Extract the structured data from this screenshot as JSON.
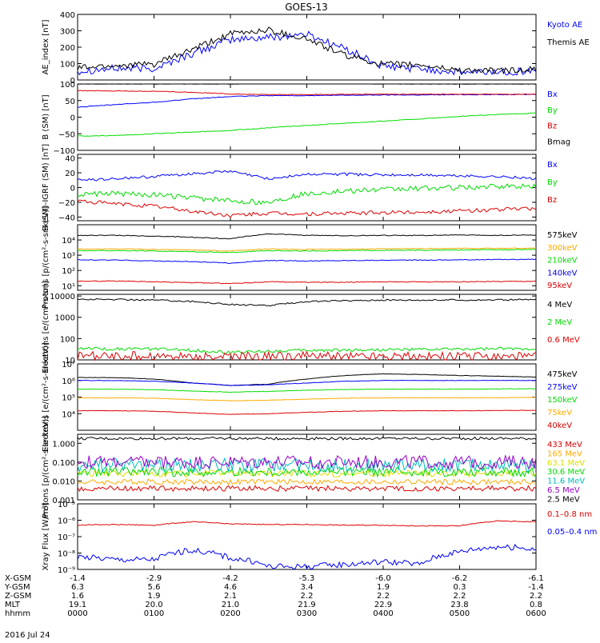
{
  "title": "GOES-13",
  "date_label": "2016 Jul 24",
  "ephemeris": {
    "rows": [
      {
        "label": "X-GSM",
        "values": [
          "-1.4",
          "-2.9",
          "-4.2",
          "-5.3",
          "-6.0",
          "-6.2",
          "-6.1"
        ]
      },
      {
        "label": "Y-GSM",
        "values": [
          "6.3",
          "5.6",
          "4.6",
          "3.4",
          "1.9",
          "0.3",
          "-1.4"
        ]
      },
      {
        "label": "Z-GSM",
        "values": [
          "1.6",
          "1.9",
          "2.1",
          "2.2",
          "2.2",
          "2.2",
          "2.2"
        ]
      },
      {
        "label": "MLT",
        "values": [
          "19.1",
          "20.0",
          "21.0",
          "21.9",
          "22.9",
          "23.8",
          "0.8"
        ]
      },
      {
        "label": "hhmm",
        "values": [
          "0000",
          "0100",
          "0200",
          "0300",
          "0400",
          "0500",
          "0600"
        ]
      }
    ]
  },
  "colors": {
    "black": "#000000",
    "blue": "#0000ff",
    "red": "#dd0000",
    "green": "#00dd00",
    "orange": "#ffaa00",
    "darkred": "#aa0000",
    "cyan": "#00aaff",
    "yellow": "#dddd00",
    "purple": "#9900cc",
    "teal": "#00bbbb"
  },
  "chart_data": [
    {
      "type": "line",
      "ylabel": "AE_index [nT]",
      "scale": "linear",
      "ylim": [
        0,
        400
      ],
      "yticks": [
        0,
        100,
        200,
        300,
        400
      ],
      "ytick_labels": [
        "0",
        "100",
        "200",
        "300",
        "400"
      ],
      "x": [
        0,
        0.5,
        1,
        1.5,
        2,
        2.5,
        3,
        3.5,
        4,
        4.5,
        5,
        5.5,
        6
      ],
      "series": [
        {
          "name": "Kyoto AE",
          "color": "#0000ff",
          "noise": 0.06,
          "values": [
            55,
            70,
            70,
            160,
            245,
            260,
            280,
            190,
            80,
            70,
            45,
            50,
            55
          ]
        },
        {
          "name": "Themis AE",
          "color": "#000000",
          "noise": 0.05,
          "values": [
            75,
            90,
            95,
            185,
            280,
            305,
            250,
            150,
            95,
            90,
            60,
            55,
            65
          ]
        }
      ]
    },
    {
      "type": "line",
      "ylabel": "B (SM) [nT]",
      "scale": "linear",
      "ylim": [
        -100,
        100
      ],
      "yticks": [
        -100,
        -50,
        0,
        50,
        100
      ],
      "ytick_labels": [
        "−100",
        "−50",
        "0",
        "50",
        "100"
      ],
      "x": [
        0,
        0.5,
        1,
        1.5,
        2,
        2.5,
        3,
        3.5,
        4,
        4.5,
        5,
        5.5,
        6
      ],
      "series": [
        {
          "name": "Bx",
          "color": "#0000ff",
          "noise": 0.005,
          "values": [
            30,
            38,
            45,
            55,
            62,
            65,
            65,
            66,
            67,
            67,
            68,
            68,
            69
          ]
        },
        {
          "name": "By",
          "color": "#00dd00",
          "noise": 0.005,
          "values": [
            -57,
            -55,
            -50,
            -45,
            -40,
            -32,
            -25,
            -18,
            -12,
            -5,
            2,
            8,
            12
          ]
        },
        {
          "name": "Bz",
          "color": "#dd0000",
          "noise": 0.005,
          "values": [
            80,
            79,
            78,
            75,
            70,
            68,
            68,
            69,
            69,
            69,
            69,
            69,
            69
          ]
        },
        {
          "name": "Bmag",
          "color": "#000000",
          "noise": 0.003,
          "values": [
            100,
            100,
            100,
            100,
            100,
            101,
            101,
            101,
            100,
            100,
            100,
            100,
            100
          ]
        }
      ]
    },
    {
      "type": "line",
      "ylabel": "B (SM)-IGRF (SM) [nT]",
      "scale": "linear",
      "ylim": [
        -45,
        45
      ],
      "yticks": [
        -40,
        -20,
        0,
        20,
        40
      ],
      "ytick_labels": [
        "−40",
        "−20",
        "0",
        "20",
        "40"
      ],
      "x": [
        0,
        0.5,
        1,
        1.5,
        2,
        2.5,
        3,
        3.5,
        4,
        4.5,
        5,
        5.5,
        6
      ],
      "series": [
        {
          "name": "Bx",
          "color": "#0000ff",
          "noise": 0.02,
          "values": [
            10,
            12,
            15,
            19,
            22,
            12,
            18,
            18,
            17,
            17,
            16,
            15,
            12
          ]
        },
        {
          "name": "By",
          "color": "#00dd00",
          "noise": 0.04,
          "values": [
            -10,
            -8,
            -10,
            -14,
            -18,
            -20,
            -8,
            -5,
            -3,
            -1,
            0,
            1,
            2
          ]
        },
        {
          "name": "Bz",
          "color": "#dd0000",
          "noise": 0.03,
          "values": [
            -18,
            -22,
            -25,
            -32,
            -38,
            -35,
            -36,
            -35,
            -34,
            -33,
            -32,
            -30,
            -28
          ]
        }
      ]
    },
    {
      "type": "line",
      "ylabel": "Protons [p/(cm²-s-sr-keV)]",
      "scale": "log",
      "ylim": [
        5,
        100000
      ],
      "yticks": [
        10,
        100,
        1000,
        10000
      ],
      "ytick_labels": [
        "10¹",
        "10²",
        "10³",
        "10⁴"
      ],
      "x": [
        0,
        0.5,
        1,
        1.5,
        2,
        2.5,
        3,
        3.5,
        4,
        4.5,
        5,
        5.5,
        6
      ],
      "series": [
        {
          "name": "575keV",
          "color": "#000000",
          "noise": 0.02,
          "values": [
            20000,
            20000,
            18000,
            15000,
            12000,
            25000,
            20000,
            19000,
            20000,
            20000,
            21000,
            20000,
            21000
          ]
        },
        {
          "name": "300keV",
          "color": "#ffaa00",
          "noise": 0.02,
          "values": [
            2500,
            2600,
            2400,
            2200,
            1900,
            2600,
            2400,
            2500,
            2600,
            2700,
            2800,
            2800,
            2900
          ]
        },
        {
          "name": "210keV",
          "color": "#00dd00",
          "noise": 0.02,
          "values": [
            2000,
            2000,
            1900,
            1700,
            1500,
            2000,
            1900,
            2000,
            2100,
            2100,
            2200,
            2300,
            2400
          ]
        },
        {
          "name": "140keV",
          "color": "#0000ff",
          "noise": 0.02,
          "values": [
            500,
            480,
            420,
            380,
            300,
            450,
            420,
            450,
            470,
            480,
            500,
            520,
            550
          ]
        },
        {
          "name": "95keV",
          "color": "#dd0000",
          "noise": 0.02,
          "values": [
            20,
            20,
            18,
            16,
            14,
            18,
            17,
            17,
            18,
            18,
            18,
            19,
            20
          ]
        }
      ]
    },
    {
      "type": "line",
      "ylabel": "Electrons [e/(cm²-s-sr)]",
      "scale": "log",
      "ylim": [
        10,
        12000
      ],
      "yticks": [
        10,
        100,
        1000,
        10000
      ],
      "ytick_labels": [
        "10",
        "100",
        "1000",
        "10000"
      ],
      "x": [
        0,
        0.5,
        1,
        1.5,
        2,
        2.5,
        3,
        3.5,
        4,
        4.5,
        5,
        5.5,
        6
      ],
      "series": [
        {
          "name": "4 MeV",
          "color": "#000000",
          "noise": 0.03,
          "values": [
            7000,
            6800,
            6500,
            5500,
            4000,
            3500,
            5500,
            6000,
            6500,
            6500,
            6500,
            6600,
            6800
          ]
        },
        {
          "name": "2 MeV",
          "color": "#00dd00",
          "noise": 0.06,
          "values": [
            35,
            33,
            32,
            28,
            22,
            26,
            28,
            29,
            30,
            31,
            32,
            33,
            34
          ]
        },
        {
          "name": "0.6 MeV",
          "color": "#dd0000",
          "noise": 0.18,
          "values": [
            15,
            15,
            15,
            14,
            14,
            15,
            15,
            15,
            15,
            15,
            15,
            15,
            15
          ]
        }
      ]
    },
    {
      "type": "line",
      "ylabel": "Electrons [e/(cm²-s-sr-keV)]",
      "scale": "log",
      "ylim": [
        1000,
        10000000
      ],
      "yticks": [
        10000,
        100000,
        1000000,
        10000000
      ],
      "ytick_labels": [
        "10⁴",
        "10⁵",
        "10⁶",
        "10⁷"
      ],
      "x": [
        0,
        0.5,
        1,
        1.5,
        2,
        2.5,
        3,
        3.5,
        4,
        4.5,
        5,
        5.5,
        6
      ],
      "series": [
        {
          "name": "475keV",
          "color": "#000000",
          "noise": 0.01,
          "values": [
            1500000,
            1500000,
            1200000,
            700000,
            500000,
            600000,
            1200000,
            2000000,
            2500000,
            2300000,
            2000000,
            1800000,
            1600000
          ]
        },
        {
          "name": "275keV",
          "color": "#0000ff",
          "noise": 0.01,
          "values": [
            1000000,
            1000000,
            900000,
            700000,
            500000,
            550000,
            700000,
            900000,
            1000000,
            1000000,
            1000000,
            1000000,
            1000000
          ]
        },
        {
          "name": "150keV",
          "color": "#00dd00",
          "noise": 0.01,
          "values": [
            300000,
            300000,
            280000,
            230000,
            200000,
            220000,
            260000,
            290000,
            300000,
            300000,
            300000,
            310000,
            320000
          ]
        },
        {
          "name": "75keV",
          "color": "#ffaa00",
          "noise": 0.01,
          "values": [
            90000,
            90000,
            85000,
            70000,
            60000,
            65000,
            75000,
            85000,
            90000,
            90000,
            90000,
            92000,
            95000
          ]
        },
        {
          "name": "40keV",
          "color": "#dd0000",
          "noise": 0.01,
          "values": [
            15000,
            15000,
            14000,
            11000,
            9000,
            10000,
            12000,
            14000,
            15000,
            15000,
            15000,
            15500,
            16000
          ]
        }
      ]
    },
    {
      "type": "line",
      "ylabel": "Protons [p/(cm²-s-sr-keV)]",
      "scale": "log",
      "ylim": [
        0.001,
        3
      ],
      "yticks": [
        0.001,
        0.01,
        0.1,
        1
      ],
      "ytick_labels": [
        "0.001",
        "0.010",
        "0.100",
        "1.000"
      ],
      "x": [
        0,
        0.5,
        1,
        1.5,
        2,
        2.5,
        3,
        3.5,
        4,
        4.5,
        5,
        5.5,
        6
      ],
      "series": [
        {
          "name": "433 MeV",
          "color": "#dd0000",
          "noise": 0.12,
          "values": [
            0.004,
            0.004,
            0.004,
            0.004,
            0.004,
            0.004,
            0.004,
            0.004,
            0.004,
            0.004,
            0.004,
            0.004,
            0.004
          ]
        },
        {
          "name": "165 MeV",
          "color": "#ffaa00",
          "noise": 0.12,
          "values": [
            0.009,
            0.009,
            0.009,
            0.009,
            0.009,
            0.009,
            0.009,
            0.009,
            0.009,
            0.009,
            0.009,
            0.009,
            0.009
          ]
        },
        {
          "name": "63.1 MeV",
          "color": "#dddd00",
          "noise": 0.15,
          "values": [
            0.025,
            0.025,
            0.025,
            0.025,
            0.025,
            0.025,
            0.025,
            0.025,
            0.025,
            0.025,
            0.025,
            0.025,
            0.025
          ]
        },
        {
          "name": "30.6 MeV",
          "color": "#00dd00",
          "noise": 0.2,
          "values": [
            0.03,
            0.03,
            0.03,
            0.03,
            0.03,
            0.03,
            0.03,
            0.03,
            0.03,
            0.03,
            0.03,
            0.03,
            0.03
          ]
        },
        {
          "name": "11.6 MeV",
          "color": "#00bbbb",
          "noise": 0.3,
          "values": [
            0.07,
            0.07,
            0.07,
            0.07,
            0.07,
            0.07,
            0.07,
            0.07,
            0.07,
            0.07,
            0.07,
            0.07,
            0.07
          ]
        },
        {
          "name": "6.5 MeV",
          "color": "#9900cc",
          "noise": 0.3,
          "values": [
            0.1,
            0.1,
            0.1,
            0.1,
            0.1,
            0.1,
            0.1,
            0.1,
            0.1,
            0.1,
            0.1,
            0.1,
            0.1
          ]
        },
        {
          "name": "2.5 MeV",
          "color": "#000000",
          "noise": 0.06,
          "values": [
            1.8,
            1.8,
            1.8,
            1.8,
            1.8,
            1.8,
            1.8,
            1.8,
            1.8,
            1.8,
            1.8,
            1.8,
            1.8
          ]
        }
      ]
    },
    {
      "type": "line",
      "ylabel": "Xray Flux [W/m²]",
      "scale": "log",
      "ylim": [
        1e-09,
        1e-05
      ],
      "yticks": [
        1e-09,
        1e-08,
        1e-07,
        1e-06,
        1e-05
      ],
      "ytick_labels": [
        "10⁻⁹",
        "10⁻⁸",
        "10⁻⁷",
        "10⁻⁶",
        "10⁻⁵"
      ],
      "x": [
        0,
        0.5,
        1,
        1.5,
        2,
        2.5,
        3,
        3.5,
        4,
        4.5,
        5,
        5.5,
        6
      ],
      "series": [
        {
          "name": "0.1–0.8 nm",
          "color": "#dd0000",
          "noise": 0.02,
          "values": [
            5e-07,
            5.5e-07,
            5e-07,
            8e-07,
            6e-07,
            5.5e-07,
            5.5e-07,
            5e-07,
            5e-07,
            4.5e-07,
            4.5e-07,
            9e-07,
            8e-07
          ]
        },
        {
          "name": "0.05–0.4 nm",
          "color": "#0000ff",
          "noise": 0.15,
          "values": [
            6e-09,
            4e-09,
            4e-09,
            1.5e-08,
            5e-09,
            1.5e-09,
            1.5e-09,
            2e-09,
            3e-09,
            2e-09,
            1.2e-08,
            2.5e-08,
            1.8e-08
          ]
        }
      ]
    }
  ]
}
